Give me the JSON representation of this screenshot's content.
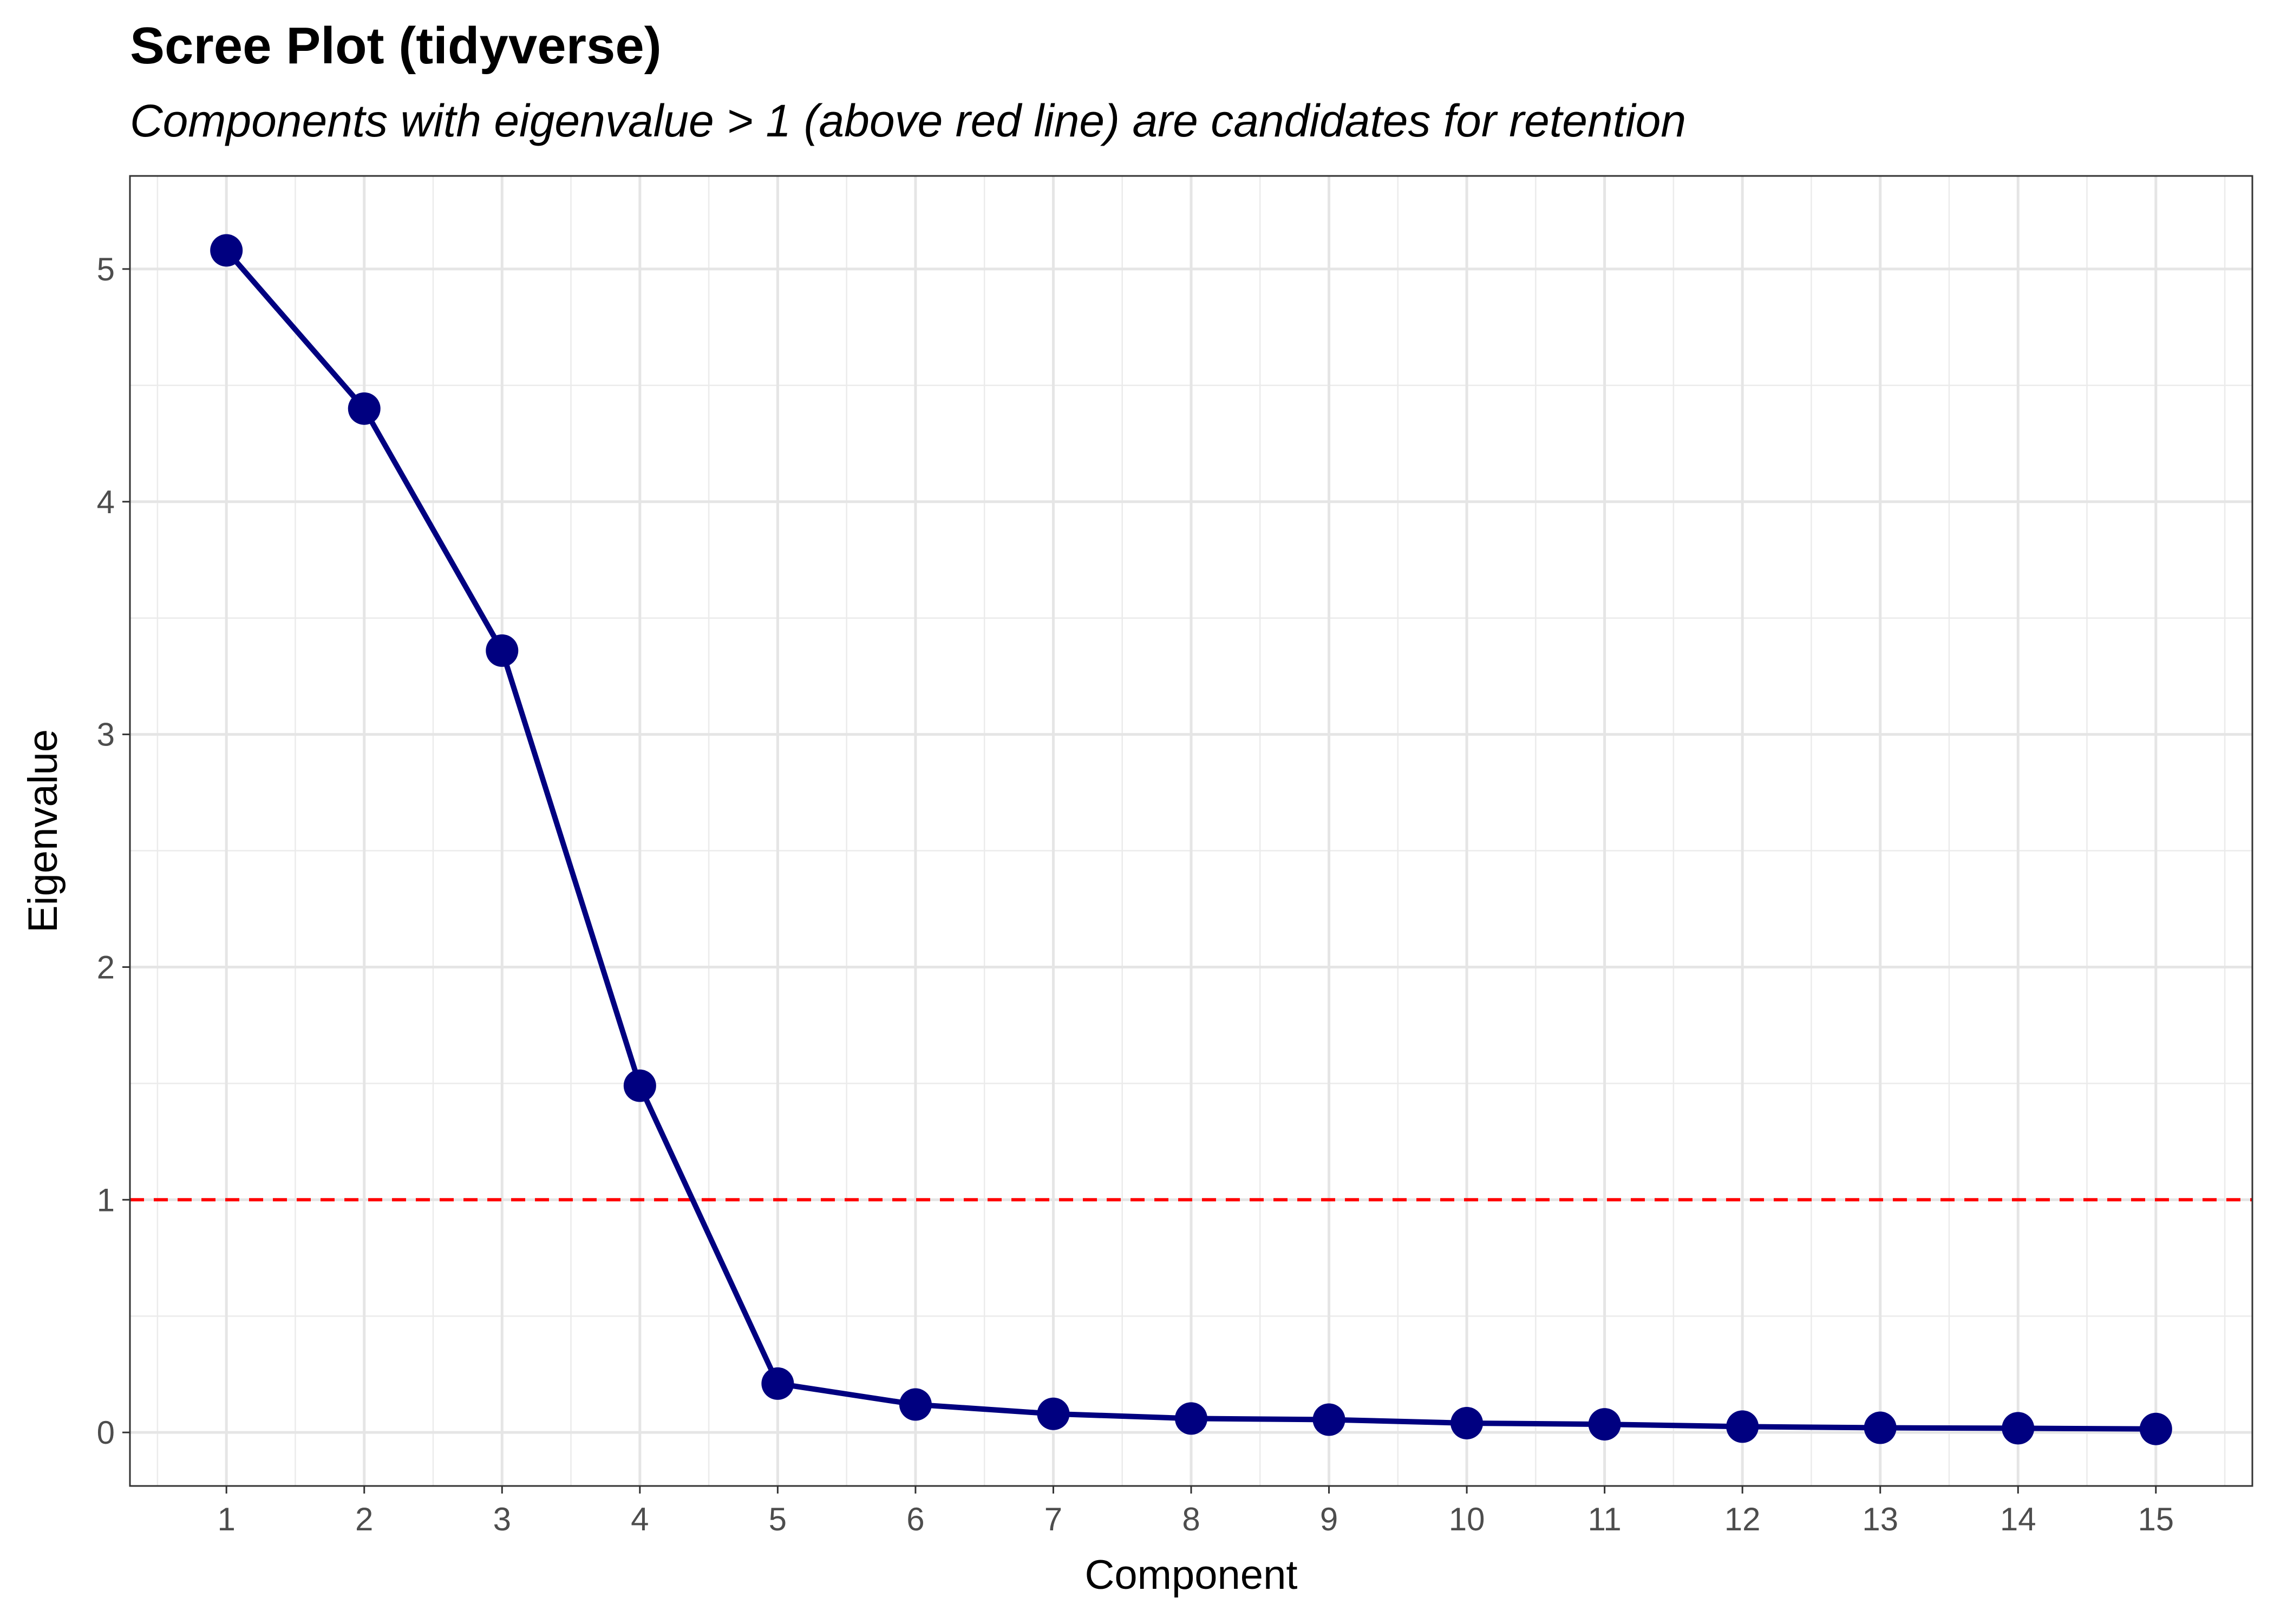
{
  "chart_data": {
    "type": "line",
    "title": "Scree Plot (tidyverse)",
    "subtitle": "Components with eigenvalue > 1 (above red line) are candidates for retention",
    "xlabel": "Component",
    "ylabel": "Eigenvalue",
    "x": [
      1,
      2,
      3,
      4,
      5,
      6,
      7,
      8,
      9,
      10,
      11,
      12,
      13,
      14,
      15
    ],
    "series": [
      {
        "values": [
          5.08,
          4.4,
          3.36,
          1.49,
          0.21,
          0.12,
          0.08,
          0.06,
          0.055,
          0.04,
          0.035,
          0.025,
          0.02,
          0.018,
          0.015
        ]
      }
    ],
    "x_ticks": [
      "1",
      "2",
      "3",
      "4",
      "5",
      "6",
      "7",
      "8",
      "9",
      "10",
      "11",
      "12",
      "13",
      "14",
      "15"
    ],
    "y_ticks": [
      "0",
      "1",
      "2",
      "3",
      "4",
      "5"
    ],
    "xlim": [
      0.3,
      15.7
    ],
    "ylim": [
      -0.23,
      5.4
    ],
    "reference_line": {
      "y": 1,
      "style": "dashed",
      "color": "#ff0000"
    },
    "line_color": "#000080",
    "point_color": "#000080",
    "grid": true,
    "legend": "none"
  }
}
